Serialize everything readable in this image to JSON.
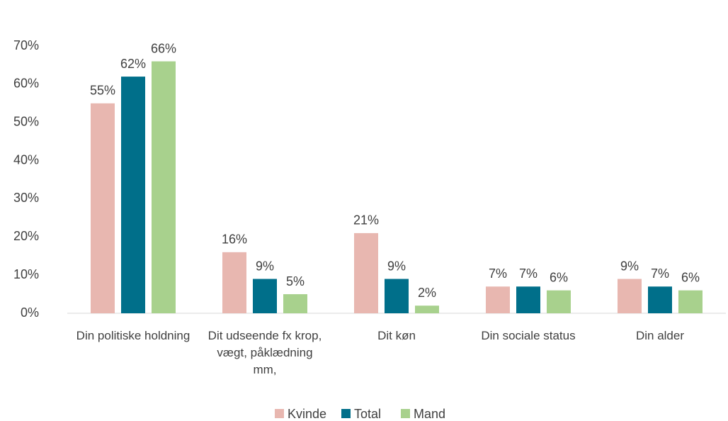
{
  "chart_data": {
    "type": "bar",
    "categories": [
      "Din politiske holdning",
      "Dit udseende fx krop, vægt, påklædning mm,",
      "Dit køn",
      "Din sociale status",
      "Din alder"
    ],
    "series": [
      {
        "name": "Kvinde",
        "color": "#e8b7b0",
        "values": [
          55,
          16,
          21,
          7,
          9
        ],
        "value_labels": [
          "55%",
          "16%",
          "21%",
          "7%",
          "9%"
        ]
      },
      {
        "name": "Total",
        "color": "#006f8a",
        "values": [
          62,
          9,
          9,
          7,
          7
        ],
        "value_labels": [
          "62%",
          "9%",
          "9%",
          "7%",
          "7%"
        ]
      },
      {
        "name": "Mand",
        "color": "#a8d18d",
        "values": [
          66,
          5,
          2,
          6,
          6
        ],
        "value_labels": [
          "66%",
          "5%",
          "2%",
          "6%",
          "6%"
        ]
      }
    ],
    "ylim": [
      0,
      70
    ],
    "yticks": [
      {
        "value": 0,
        "label": "0%"
      },
      {
        "value": 10,
        "label": "10%"
      },
      {
        "value": 20,
        "label": "20%"
      },
      {
        "value": 30,
        "label": "30%"
      },
      {
        "value": 40,
        "label": "40%"
      },
      {
        "value": 50,
        "label": "50%"
      },
      {
        "value": 60,
        "label": "60%"
      },
      {
        "value": 70,
        "label": "70%"
      }
    ],
    "grid": false,
    "legend": "bottom"
  }
}
